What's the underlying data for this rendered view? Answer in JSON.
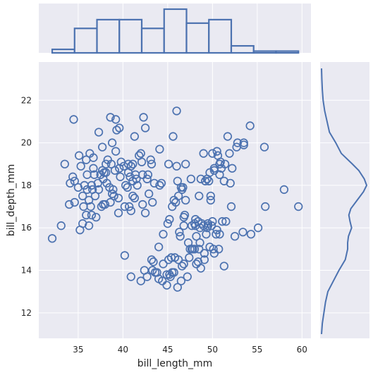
{
  "chart_data": {
    "type": "scatter",
    "title": "",
    "xlabel": "bill_length_mm",
    "ylabel": "bill_depth_mm",
    "xlim": [
      30.6,
      61.0
    ],
    "ylim": [
      10.8,
      23.8
    ],
    "xticks": [
      35,
      40,
      45,
      50,
      55,
      60
    ],
    "yticks": [
      12,
      14,
      16,
      18,
      20,
      22
    ],
    "grid": true,
    "colors": {
      "background": "#eaeaf2",
      "grid": "#ffffff",
      "series": "#4c72b0"
    },
    "marginal_x": {
      "type": "histogram",
      "bin_edges": [
        32.1,
        34.6,
        37.1,
        39.6,
        42.1,
        44.6,
        47.1,
        49.6,
        52.1,
        54.6,
        57.1,
        59.6
      ],
      "counts": [
        2,
        14,
        19,
        19,
        14,
        25,
        17,
        19,
        4,
        1,
        1
      ]
    },
    "marginal_y": {
      "type": "kde",
      "points": [
        [
          11.0,
          0.0
        ],
        [
          11.5,
          0.01
        ],
        [
          12.0,
          0.03
        ],
        [
          12.5,
          0.05
        ],
        [
          13.0,
          0.08
        ],
        [
          13.5,
          0.15
        ],
        [
          14.0,
          0.22
        ],
        [
          14.5,
          0.3
        ],
        [
          15.0,
          0.33
        ],
        [
          15.3,
          0.33
        ],
        [
          15.6,
          0.34
        ],
        [
          16.0,
          0.38
        ],
        [
          16.3,
          0.36
        ],
        [
          16.6,
          0.345
        ],
        [
          16.9,
          0.37
        ],
        [
          17.3,
          0.45
        ],
        [
          17.7,
          0.53
        ],
        [
          18.0,
          0.57
        ],
        [
          18.3,
          0.54
        ],
        [
          18.7,
          0.47
        ],
        [
          19.0,
          0.39
        ],
        [
          19.5,
          0.25
        ],
        [
          20.0,
          0.18
        ],
        [
          20.5,
          0.1
        ],
        [
          21.0,
          0.07
        ],
        [
          21.5,
          0.04
        ],
        [
          22.0,
          0.02
        ],
        [
          22.5,
          0.01
        ],
        [
          23.0,
          0.004
        ],
        [
          23.5,
          0.0
        ]
      ]
    },
    "points": [
      [
        32.1,
        15.5
      ],
      [
        33.1,
        16.1
      ],
      [
        33.5,
        19.0
      ],
      [
        34.0,
        17.1
      ],
      [
        34.1,
        18.1
      ],
      [
        34.4,
        18.4
      ],
      [
        34.5,
        21.1
      ],
      [
        34.6,
        17.2
      ],
      [
        34.6,
        18.2
      ],
      [
        35.0,
        17.9
      ],
      [
        35.1,
        19.4
      ],
      [
        35.2,
        15.9
      ],
      [
        35.3,
        18.9
      ],
      [
        35.5,
        16.2
      ],
      [
        35.5,
        17.5
      ],
      [
        35.6,
        17.0
      ],
      [
        35.7,
        18.0
      ],
      [
        35.9,
        16.6
      ],
      [
        35.9,
        19.2
      ],
      [
        36.0,
        17.8
      ],
      [
        36.0,
        18.5
      ],
      [
        36.2,
        16.1
      ],
      [
        36.2,
        17.3
      ],
      [
        36.3,
        19.5
      ],
      [
        36.4,
        17.0
      ],
      [
        36.5,
        16.6
      ],
      [
        36.5,
        18.0
      ],
      [
        36.6,
        17.8
      ],
      [
        36.7,
        18.8
      ],
      [
        36.7,
        19.3
      ],
      [
        36.8,
        18.5
      ],
      [
        36.9,
        17.5
      ],
      [
        37.0,
        16.5
      ],
      [
        37.2,
        18.1
      ],
      [
        37.3,
        17.8
      ],
      [
        37.3,
        20.5
      ],
      [
        37.5,
        18.5
      ],
      [
        37.6,
        17.0
      ],
      [
        37.7,
        18.7
      ],
      [
        37.7,
        19.8
      ],
      [
        37.8,
        17.1
      ],
      [
        37.8,
        18.3
      ],
      [
        37.9,
        18.6
      ],
      [
        38.0,
        17.1
      ],
      [
        38.1,
        18.6
      ],
      [
        38.1,
        19.0
      ],
      [
        38.2,
        18.1
      ],
      [
        38.3,
        19.2
      ],
      [
        38.5,
        17.9
      ],
      [
        38.6,
        17.2
      ],
      [
        38.6,
        21.2
      ],
      [
        38.7,
        19.0
      ],
      [
        38.8,
        17.6
      ],
      [
        38.8,
        20.0
      ],
      [
        38.9,
        17.8
      ],
      [
        39.0,
        17.5
      ],
      [
        39.1,
        18.7
      ],
      [
        39.2,
        19.6
      ],
      [
        39.2,
        21.1
      ],
      [
        39.3,
        20.6
      ],
      [
        39.5,
        16.7
      ],
      [
        39.5,
        17.4
      ],
      [
        39.6,
        18.8
      ],
      [
        39.6,
        20.7
      ],
      [
        39.7,
        18.4
      ],
      [
        39.8,
        19.1
      ],
      [
        40.1,
        18.9
      ],
      [
        40.2,
        17.0
      ],
      [
        40.3,
        18.0
      ],
      [
        40.5,
        17.9
      ],
      [
        40.6,
        18.6
      ],
      [
        40.6,
        19.0
      ],
      [
        40.7,
        17.0
      ],
      [
        40.8,
        18.4
      ],
      [
        40.9,
        16.8
      ],
      [
        40.9,
        18.9
      ],
      [
        41.1,
        17.5
      ],
      [
        41.1,
        18.2
      ],
      [
        41.1,
        19.0
      ],
      [
        41.3,
        17.4
      ],
      [
        41.3,
        20.3
      ],
      [
        41.4,
        18.5
      ],
      [
        41.5,
        18.3
      ],
      [
        41.6,
        18.0
      ],
      [
        41.8,
        19.4
      ],
      [
        42.0,
        19.5
      ],
      [
        42.1,
        19.1
      ],
      [
        42.2,
        17.1
      ],
      [
        42.2,
        18.5
      ],
      [
        42.3,
        21.2
      ],
      [
        42.5,
        16.7
      ],
      [
        42.5,
        20.7
      ],
      [
        42.7,
        18.3
      ],
      [
        42.8,
        18.5
      ],
      [
        42.9,
        17.6
      ],
      [
        43.1,
        19.2
      ],
      [
        43.2,
        19.0
      ],
      [
        43.3,
        17.2
      ],
      [
        44.1,
        18.0
      ],
      [
        44.1,
        19.7
      ],
      [
        44.9,
        13.3
      ],
      [
        45.2,
        13.8
      ],
      [
        45.6,
        20.3
      ],
      [
        46.1,
        18.2
      ],
      [
        46.5,
        17.9
      ],
      [
        46.7,
        17.9
      ],
      [
        46.8,
        16.1
      ],
      [
        46.9,
        16.6
      ],
      [
        47.0,
        17.3
      ],
      [
        47.5,
        15.0
      ],
      [
        47.6,
        18.3
      ],
      [
        48.1,
        16.4
      ],
      [
        48.2,
        14.3
      ],
      [
        48.5,
        17.5
      ],
      [
        48.6,
        16.0
      ],
      [
        48.8,
        16.2
      ],
      [
        49.0,
        19.5
      ],
      [
        49.2,
        18.2
      ],
      [
        49.5,
        16.1
      ],
      [
        49.6,
        18.2
      ],
      [
        49.8,
        17.3
      ],
      [
        50.0,
        19.5
      ],
      [
        50.2,
        18.8
      ],
      [
        50.4,
        15.7
      ],
      [
        50.5,
        19.6
      ],
      [
        50.8,
        19.0
      ],
      [
        51.0,
        18.8
      ],
      [
        51.3,
        18.2
      ],
      [
        51.5,
        16.3
      ],
      [
        51.7,
        20.3
      ],
      [
        52.0,
        18.1
      ],
      [
        52.7,
        19.8
      ],
      [
        53.5,
        19.9
      ],
      [
        54.2,
        20.8
      ],
      [
        55.8,
        19.8
      ],
      [
        50.6,
        19.4
      ],
      [
        49.7,
        18.6
      ],
      [
        48.4,
        14.4
      ],
      [
        46.0,
        21.5
      ],
      [
        45.5,
        17.0
      ],
      [
        43.5,
        18.1
      ],
      [
        43.2,
        14.5
      ],
      [
        43.4,
        14.4
      ],
      [
        43.6,
        13.9
      ],
      [
        44.0,
        13.6
      ],
      [
        44.5,
        14.3
      ],
      [
        45.1,
        14.5
      ],
      [
        45.3,
        13.7
      ],
      [
        45.8,
        14.6
      ],
      [
        46.1,
        13.2
      ],
      [
        46.2,
        14.5
      ],
      [
        46.4,
        15.6
      ],
      [
        46.5,
        13.5
      ],
      [
        46.8,
        14.3
      ],
      [
        47.2,
        13.7
      ],
      [
        47.4,
        14.6
      ],
      [
        47.7,
        15.0
      ],
      [
        48.2,
        15.6
      ],
      [
        48.4,
        16.3
      ],
      [
        48.7,
        14.1
      ],
      [
        49.1,
        14.8
      ],
      [
        49.3,
        15.7
      ],
      [
        49.9,
        16.1
      ],
      [
        50.1,
        15.0
      ],
      [
        50.5,
        15.9
      ],
      [
        50.7,
        15.0
      ],
      [
        51.1,
        16.3
      ],
      [
        51.3,
        14.2
      ],
      [
        52.1,
        17.0
      ],
      [
        52.5,
        15.6
      ],
      [
        53.4,
        15.8
      ],
      [
        54.3,
        15.7
      ],
      [
        55.1,
        16.0
      ],
      [
        59.6,
        17.0
      ],
      [
        55.9,
        17.0
      ],
      [
        58.0,
        17.8
      ],
      [
        50.0,
        16.3
      ],
      [
        49.5,
        16.2
      ],
      [
        48.0,
        15.0
      ],
      [
        47.3,
        15.3
      ],
      [
        46.6,
        14.2
      ],
      [
        45.5,
        13.9
      ],
      [
        44.9,
        13.8
      ],
      [
        45.7,
        13.9
      ],
      [
        46.3,
        15.8
      ],
      [
        47.8,
        15.0
      ],
      [
        48.5,
        15.0
      ],
      [
        49.0,
        16.1
      ],
      [
        40.9,
        13.7
      ],
      [
        42.0,
        13.5
      ],
      [
        40.2,
        14.7
      ],
      [
        42.4,
        14.0
      ],
      [
        42.7,
        13.7
      ],
      [
        43.3,
        14.0
      ],
      [
        43.8,
        13.9
      ],
      [
        44.4,
        13.5
      ],
      [
        44.0,
        15.1
      ],
      [
        44.5,
        15.7
      ],
      [
        45.0,
        16.2
      ],
      [
        45.4,
        14.6
      ],
      [
        45.9,
        17.2
      ],
      [
        45.2,
        16.4
      ],
      [
        44.3,
        18.1
      ],
      [
        45.1,
        19.0
      ],
      [
        46.0,
        18.9
      ],
      [
        46.2,
        17.5
      ],
      [
        45.7,
        17.3
      ],
      [
        46.6,
        17.8
      ],
      [
        47.0,
        19.0
      ],
      [
        48.7,
        18.3
      ],
      [
        50.9,
        19.1
      ],
      [
        51.4,
        19.0
      ],
      [
        52.8,
        20.0
      ],
      [
        50.2,
        18.7
      ],
      [
        51.9,
        19.5
      ],
      [
        52.2,
        18.8
      ],
      [
        49.8,
        17.5
      ],
      [
        50.8,
        18.5
      ],
      [
        53.5,
        20.0
      ],
      [
        49.4,
        18.3
      ],
      [
        48.1,
        16.1
      ],
      [
        46.8,
        16.5
      ],
      [
        47.7,
        16.1
      ],
      [
        48.0,
        16.2
      ],
      [
        48.6,
        15.3
      ],
      [
        49.1,
        14.5
      ],
      [
        49.7,
        15.1
      ],
      [
        50.2,
        14.8
      ],
      [
        50.8,
        15.7
      ],
      [
        49.4,
        16.0
      ]
    ]
  }
}
